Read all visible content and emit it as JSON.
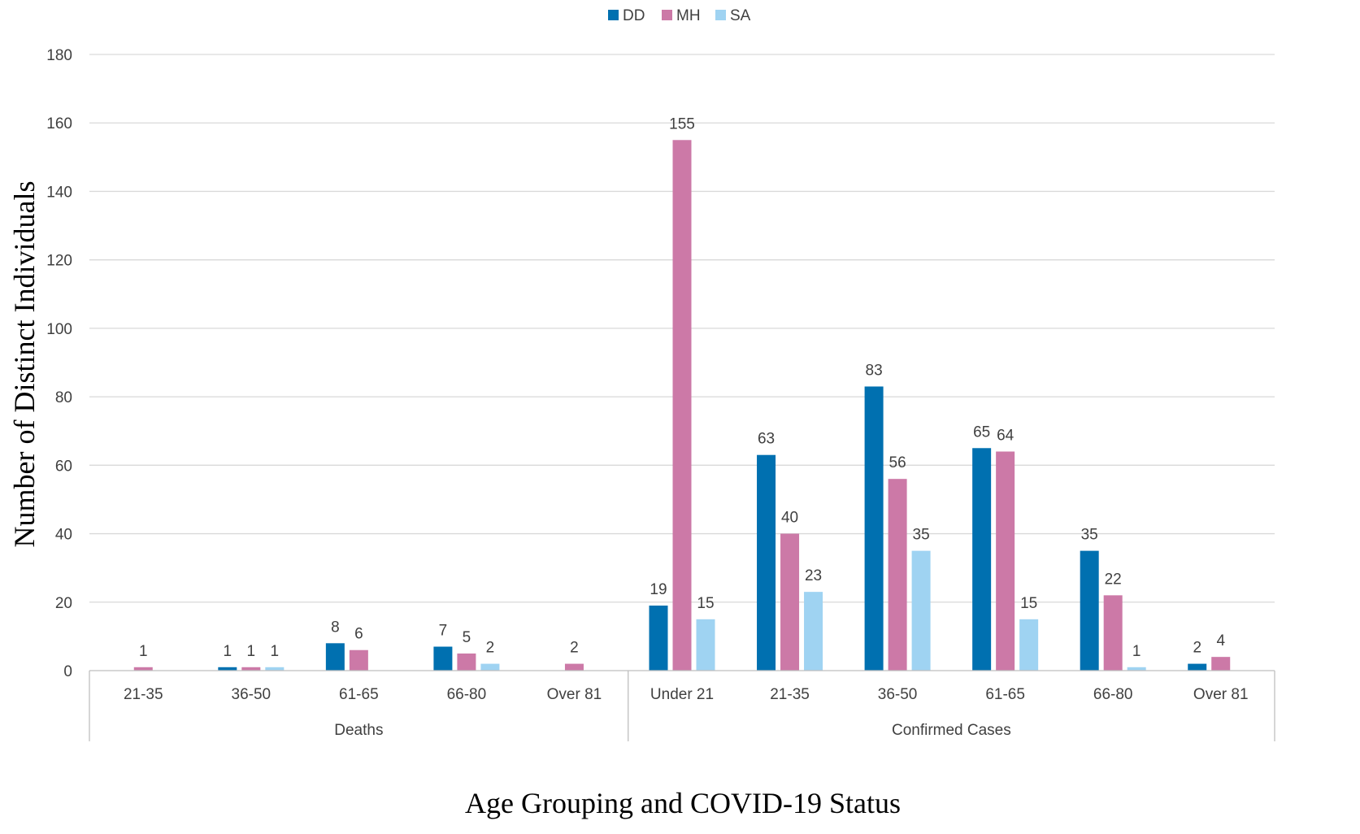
{
  "chart_data": {
    "type": "bar",
    "title": "",
    "xlabel": "Age Grouping and COVID-19 Status",
    "ylabel": "Number of Distinct Individuals",
    "ylim": [
      0,
      180
    ],
    "yticks": [
      0,
      20,
      40,
      60,
      80,
      100,
      120,
      140,
      160,
      180
    ],
    "grid": true,
    "legend_position": "top-center",
    "groups": [
      {
        "label": "Deaths",
        "categories": [
          "21-35",
          "36-50",
          "61-65",
          "66-80",
          "Over 81"
        ]
      },
      {
        "label": "Confirmed Cases",
        "categories": [
          "Under 21",
          "21-35",
          "36-50",
          "61-65",
          "66-80",
          "Over 81"
        ]
      }
    ],
    "categories": [
      "21-35",
      "36-50",
      "61-65",
      "66-80",
      "Over 81",
      "Under 21",
      "21-35",
      "36-50",
      "61-65",
      "66-80",
      "Over 81"
    ],
    "series": [
      {
        "name": "DD",
        "color": "#0070b0",
        "values": [
          null,
          1,
          8,
          7,
          null,
          19,
          63,
          83,
          65,
          35,
          2
        ]
      },
      {
        "name": "MH",
        "color": "#cc79a7",
        "values": [
          1,
          1,
          6,
          5,
          2,
          155,
          40,
          56,
          64,
          22,
          4
        ]
      },
      {
        "name": "SA",
        "color": "#9fd3f2",
        "values": [
          null,
          1,
          null,
          2,
          null,
          15,
          23,
          35,
          15,
          1,
          null
        ]
      }
    ]
  }
}
